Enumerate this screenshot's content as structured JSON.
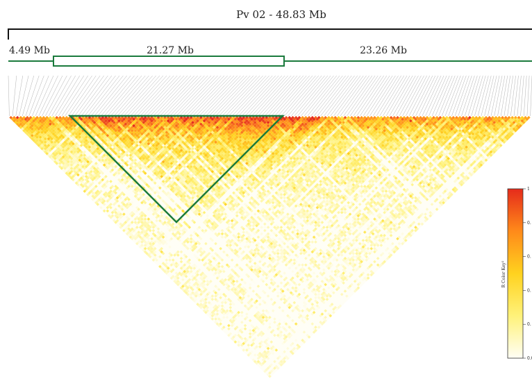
{
  "chart_data": {
    "type": "heatmap",
    "title": "Pv 02 - 48.83 Mb",
    "position_labels": [
      "4.49 Mb",
      "21.27 Mb",
      "23.26 Mb"
    ],
    "n_markers": 160,
    "highlighted_block": {
      "start_marker": 21,
      "end_marker": 95
    },
    "color_key": {
      "title": "R  Color Key",
      "title_superscript": "2",
      "range": [
        0,
        1
      ],
      "tick_labels": [
        "1",
        "0.",
        "0.",
        "0.",
        "0.",
        "0.0"
      ],
      "colors": [
        "#fffef5",
        "#fff27a",
        "#ffd21f",
        "#ff8a1a",
        "#e52b1b"
      ]
    },
    "colors": {
      "highlight": "#1a7a3c",
      "connector": "#8c8c8c",
      "axis": "#111111"
    }
  }
}
